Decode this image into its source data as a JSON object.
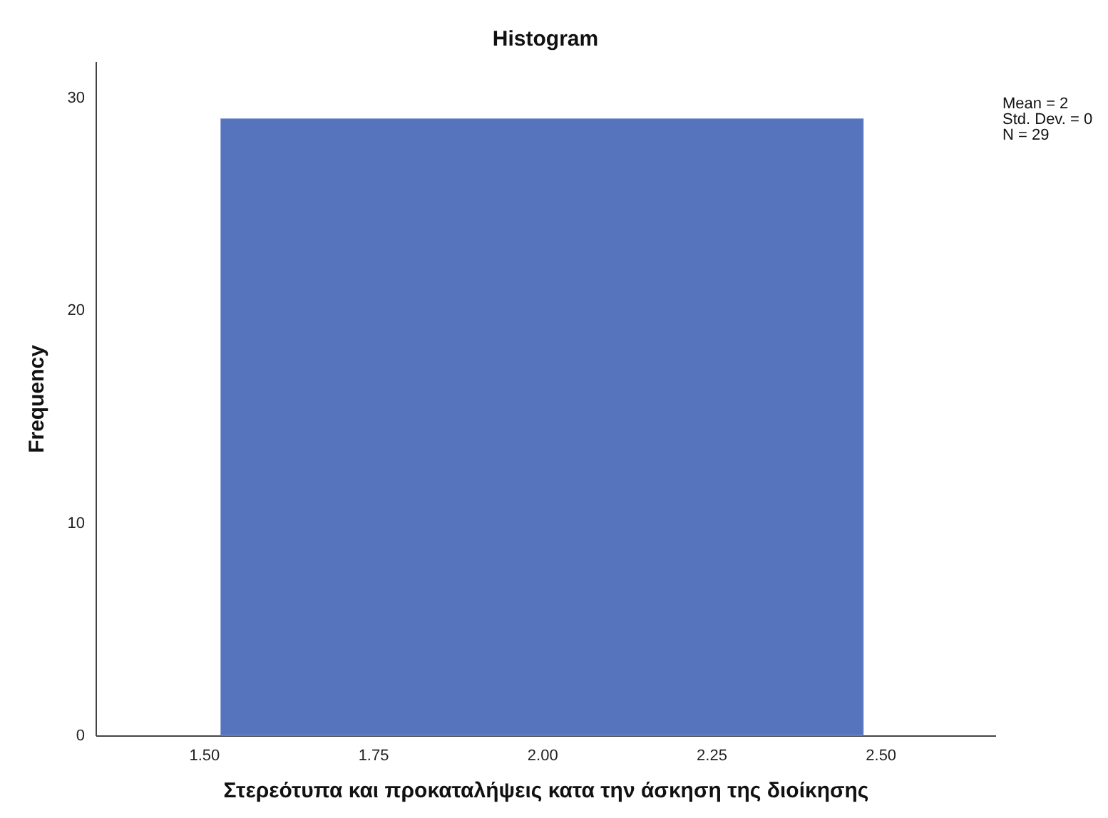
{
  "chart_data": {
    "type": "histogram",
    "title": "Histogram",
    "xlabel": "Στερεότυπα και προκαταλήψεις κατα την άσκηση της διοίκησης",
    "ylabel": "Frequency",
    "bins": [
      1.525,
      2.475
    ],
    "values": [
      29
    ],
    "color": "#5574bd",
    "xlim": [
      1.34,
      2.67
    ],
    "xticks": [
      {
        "value": 1.5,
        "label": "1.50"
      },
      {
        "value": 1.75,
        "label": "1.75"
      },
      {
        "value": 2,
        "label": "2.00"
      },
      {
        "value": 2.25,
        "label": "2.25"
      },
      {
        "value": 2.5,
        "label": "2.50"
      }
    ],
    "ylim": [
      0,
      31.7
    ],
    "yticks": [
      0,
      10,
      20,
      30
    ],
    "grid": false,
    "annotations": [
      "Mean = 2",
      "Std. Dev. = 0",
      "N = 29"
    ]
  }
}
